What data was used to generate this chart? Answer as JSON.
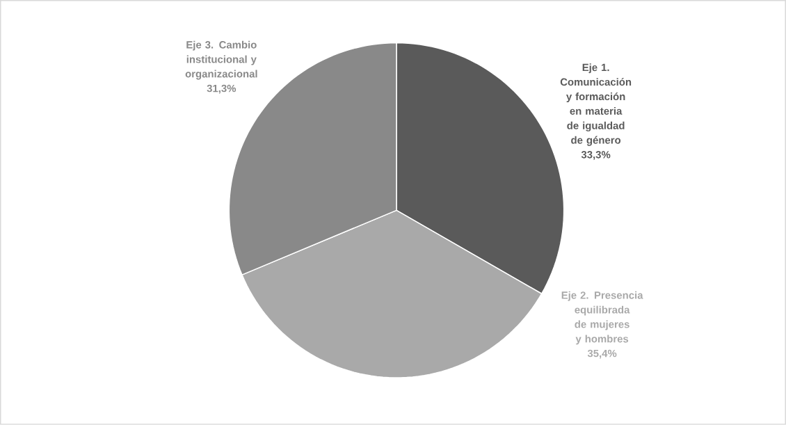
{
  "chart_data": {
    "type": "pie",
    "categories": [
      "Eje 1. Comunicación y formación en materia de igualdad de género",
      "Eje 2. Presencia equilibrada de mujeres y hombres",
      "Eje 3. Cambio institucional y organizacional"
    ],
    "values": [
      33.3,
      35.4,
      31.3
    ],
    "value_labels": [
      "33,3%",
      "35,4%",
      "31,3%"
    ],
    "colors": [
      "#5a5a5a",
      "#a9a9a9",
      "#898989"
    ]
  }
}
